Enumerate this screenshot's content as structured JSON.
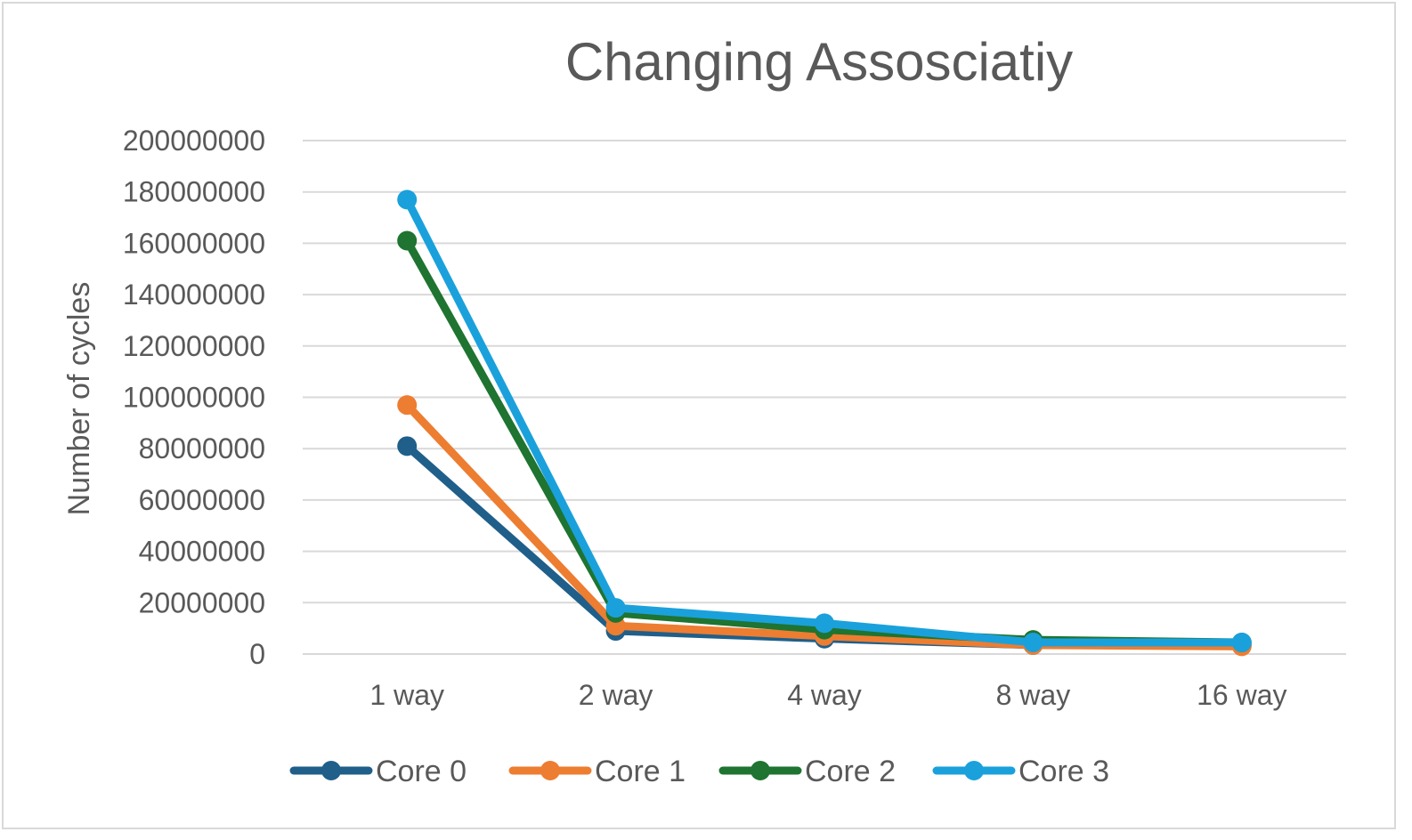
{
  "chart_data": {
    "type": "line",
    "title": "Changing Assosciatiy",
    "xlabel": "",
    "ylabel": "Number of cycles",
    "categories": [
      "1 way",
      "2 way",
      "4 way",
      "8 way",
      "16 way"
    ],
    "ylim": [
      0,
      200000000
    ],
    "yticks": [
      0,
      20000000,
      40000000,
      60000000,
      80000000,
      100000000,
      120000000,
      140000000,
      160000000,
      180000000,
      200000000
    ],
    "ytick_labels": [
      "0",
      "20000000",
      "40000000",
      "60000000",
      "80000000",
      "100000000",
      "120000000",
      "140000000",
      "160000000",
      "180000000",
      "200000000"
    ],
    "grid": true,
    "legend_position": "bottom",
    "series": [
      {
        "name": "Core 0",
        "color": "#1f5f89",
        "values": [
          81000000,
          9000000,
          6000000,
          3500000,
          3500000
        ]
      },
      {
        "name": "Core 1",
        "color": "#ed7d31",
        "values": [
          97000000,
          11000000,
          7000000,
          3500000,
          3000000
        ]
      },
      {
        "name": "Core 2",
        "color": "#1e7430",
        "values": [
          161000000,
          16000000,
          9500000,
          5500000,
          4500000
        ]
      },
      {
        "name": "Core 3",
        "color": "#1aa1dc",
        "values": [
          177000000,
          18000000,
          12000000,
          4500000,
          4500000
        ]
      }
    ]
  }
}
